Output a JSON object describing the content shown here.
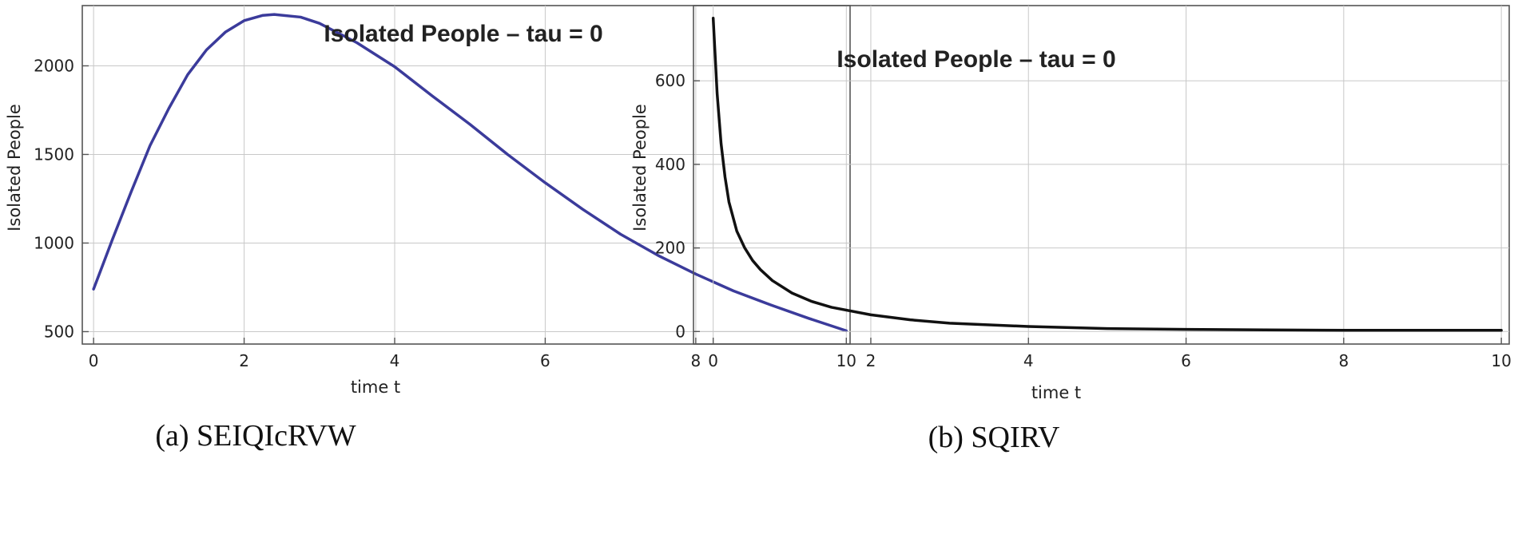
{
  "chart_data": [
    {
      "type": "line",
      "panel": "a",
      "caption": "(a)  SEIQIcRVW",
      "title": "Isolated People – tau = 0",
      "xlabel": "time t",
      "ylabel": "Isolated People",
      "xlim": [
        -0.15,
        10.05
      ],
      "ylim": [
        430,
        2340
      ],
      "xticks": [
        0,
        2,
        4,
        6,
        8,
        10
      ],
      "yticks": [
        500,
        1000,
        1500,
        2000
      ],
      "grid": true,
      "line_color": "#3b3b9b",
      "x": [
        0,
        0.25,
        0.5,
        0.75,
        1,
        1.25,
        1.5,
        1.75,
        2,
        2.25,
        2.4,
        2.75,
        3,
        3.5,
        4,
        4.5,
        5,
        5.5,
        6,
        6.5,
        7,
        7.5,
        8,
        8.5,
        9,
        9.5,
        10
      ],
      "values": [
        740,
        1020,
        1290,
        1550,
        1760,
        1950,
        2090,
        2190,
        2255,
        2285,
        2290,
        2275,
        2240,
        2130,
        1995,
        1830,
        1670,
        1500,
        1340,
        1190,
        1050,
        930,
        825,
        730,
        650,
        575,
        505
      ]
    },
    {
      "type": "line",
      "panel": "b",
      "caption": "(b)  SQIRV",
      "title": "Isolated People – tau = 0",
      "xlabel": "time t",
      "ylabel": "Isolated People",
      "xlim": [
        -0.25,
        10.1
      ],
      "ylim": [
        -30,
        780
      ],
      "xticks": [
        0,
        2,
        4,
        6,
        8,
        10
      ],
      "yticks": [
        0,
        200,
        400,
        600
      ],
      "grid": true,
      "line_color": "#111111",
      "x": [
        0,
        0.05,
        0.1,
        0.15,
        0.2,
        0.3,
        0.4,
        0.5,
        0.6,
        0.75,
        1,
        1.25,
        1.5,
        2,
        2.5,
        3,
        4,
        5,
        6,
        7,
        8,
        9,
        10
      ],
      "values": [
        750,
        570,
        450,
        370,
        310,
        240,
        200,
        170,
        148,
        122,
        92,
        72,
        58,
        40,
        28,
        20,
        12,
        7,
        5,
        4,
        3,
        3,
        3
      ]
    }
  ]
}
